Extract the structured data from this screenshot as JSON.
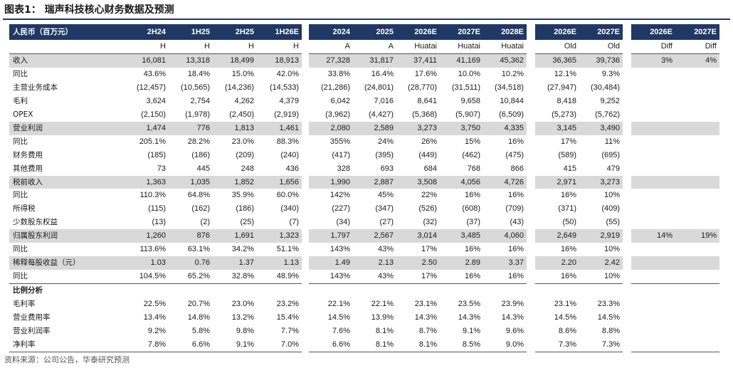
{
  "title": "图表1：  瑞声科技核心财务数据及预测",
  "source": "资料来源：公司公告，华泰研究预测",
  "header": {
    "label": "人民币（百万元）",
    "g1": [
      "2H24",
      "1H25",
      "2H25",
      "1H26E"
    ],
    "g2": [
      "2024",
      "2025",
      "2026E",
      "2027E",
      "2028E"
    ],
    "g3": [
      "2026E",
      "2027E"
    ],
    "g4": [
      "2026E",
      "2027E"
    ]
  },
  "subheader": {
    "g1": [
      "H",
      "H",
      "H",
      "H"
    ],
    "g2": [
      "A",
      "A",
      "Huatai",
      "Huatai",
      "Huatai"
    ],
    "g3": [
      "Old",
      "Old"
    ],
    "g4": [
      "Diff",
      "Diff"
    ]
  },
  "rows": [
    {
      "label": "收入",
      "g1": [
        "16,081",
        "13,318",
        "18,499",
        "18,913"
      ],
      "g2": [
        "27,328",
        "31,817",
        "37,411",
        "41,169",
        "45,362"
      ],
      "g3": [
        "36,365",
        "39,736"
      ],
      "g4": [
        "3%",
        "4%"
      ],
      "shade": true
    },
    {
      "label": "同比",
      "g1": [
        "43.6%",
        "18.4%",
        "15.0%",
        "42.0%"
      ],
      "g2": [
        "33.8%",
        "16.4%",
        "17.6%",
        "10.0%",
        "10.2%"
      ],
      "g3": [
        "12.1%",
        "9.3%"
      ],
      "g4": [
        "",
        ""
      ]
    },
    {
      "label": "主营业务成本",
      "g1": [
        "(12,457)",
        "(10,565)",
        "(14,236)",
        "(14,533)"
      ],
      "g2": [
        "(21,286)",
        "(24,801)",
        "(28,770)",
        "(31,511)",
        "(34,518)"
      ],
      "g3": [
        "(27,947)",
        "(30,484)"
      ],
      "g4": [
        "",
        ""
      ]
    },
    {
      "label": "毛利",
      "g1": [
        "3,624",
        "2,754",
        "4,262",
        "4,379"
      ],
      "g2": [
        "6,042",
        "7,016",
        "8,641",
        "9,658",
        "10,844"
      ],
      "g3": [
        "8,418",
        "9,252"
      ],
      "g4": [
        "",
        ""
      ]
    },
    {
      "label": "OPEX",
      "g1": [
        "(2,150)",
        "(1,978)",
        "(2,450)",
        "(2,919)"
      ],
      "g2": [
        "(3,962)",
        "(4,427)",
        "(5,368)",
        "(5,907)",
        "(6,509)"
      ],
      "g3": [
        "(5,273)",
        "(5,762)"
      ],
      "g4": [
        "",
        ""
      ]
    },
    {
      "label": "营业利润",
      "g1": [
        "1,474",
        "776",
        "1,813",
        "1,461"
      ],
      "g2": [
        "2,080",
        "2,589",
        "3,273",
        "3,750",
        "4,335"
      ],
      "g3": [
        "3,145",
        "3,490"
      ],
      "g4": [
        "",
        ""
      ],
      "shade": true
    },
    {
      "label": "同比",
      "g1": [
        "205.1%",
        "28.2%",
        "23.0%",
        "88.3%"
      ],
      "g2": [
        "355%",
        "24%",
        "26%",
        "15%",
        "16%"
      ],
      "g3": [
        "17%",
        "11%"
      ],
      "g4": [
        "",
        ""
      ]
    },
    {
      "label": "财务费用",
      "g1": [
        "(185)",
        "(186)",
        "(209)",
        "(240)"
      ],
      "g2": [
        "(417)",
        "(395)",
        "(449)",
        "(462)",
        "(475)"
      ],
      "g3": [
        "(589)",
        "(695)"
      ],
      "g4": [
        "",
        ""
      ]
    },
    {
      "label": "其他费用",
      "g1": [
        "73",
        "445",
        "248",
        "436"
      ],
      "g2": [
        "328",
        "693",
        "684",
        "768",
        "866"
      ],
      "g3": [
        "415",
        "479"
      ],
      "g4": [
        "",
        ""
      ]
    },
    {
      "label": "税前收入",
      "g1": [
        "1,363",
        "1,035",
        "1,852",
        "1,656"
      ],
      "g2": [
        "1,990",
        "2,887",
        "3,508",
        "4,056",
        "4,726"
      ],
      "g3": [
        "2,971",
        "3,273"
      ],
      "g4": [
        "",
        ""
      ],
      "shade": true
    },
    {
      "label": "同比",
      "g1": [
        "110.3%",
        "64.8%",
        "35.9%",
        "60.0%"
      ],
      "g2": [
        "142%",
        "45%",
        "22%",
        "16%",
        "16%"
      ],
      "g3": [
        "16%",
        "10%"
      ],
      "g4": [
        "",
        ""
      ]
    },
    {
      "label": "所得税",
      "g1": [
        "(115)",
        "(162)",
        "(186)",
        "(340)"
      ],
      "g2": [
        "(227)",
        "(347)",
        "(526)",
        "(608)",
        "(709)"
      ],
      "g3": [
        "(371)",
        "(409)"
      ],
      "g4": [
        "",
        ""
      ]
    },
    {
      "label": "少数股东权益",
      "g1": [
        "(13)",
        "(2)",
        "(25)",
        "(7)"
      ],
      "g2": [
        "(34)",
        "(27)",
        "(32)",
        "(37)",
        "(43)"
      ],
      "g3": [
        "(50)",
        "(55)"
      ],
      "g4": [
        "",
        ""
      ]
    },
    {
      "label": "归属股东利润",
      "g1": [
        "1,260",
        "876",
        "1,691",
        "1,323"
      ],
      "g2": [
        "1,797",
        "2,567",
        "3,014",
        "3,485",
        "4,060"
      ],
      "g3": [
        "2,649",
        "2,919"
      ],
      "g4": [
        "14%",
        "19%"
      ],
      "shade": true
    },
    {
      "label": "同比",
      "g1": [
        "113.6%",
        "63.1%",
        "34.2%",
        "51.1%"
      ],
      "g2": [
        "143%",
        "43%",
        "17%",
        "16%",
        "16%"
      ],
      "g3": [
        "16%",
        "10%"
      ],
      "g4": [
        "",
        ""
      ]
    },
    {
      "label": "稀释每股收益（元）",
      "g1": [
        "1.03",
        "0.76",
        "1.37",
        "1.13"
      ],
      "g2": [
        "1.49",
        "2.13",
        "2.50",
        "2.89",
        "3.37"
      ],
      "g3": [
        "2.20",
        "2.42"
      ],
      "g4": [
        "",
        ""
      ],
      "shade": true
    },
    {
      "label": "同比",
      "g1": [
        "104.5%",
        "65.2%",
        "32.8%",
        "48.9%"
      ],
      "g2": [
        "143%",
        "43%",
        "17%",
        "16%",
        "16%"
      ],
      "g3": [
        "16%",
        "10%"
      ],
      "g4": [
        "",
        ""
      ]
    }
  ],
  "ratio_section": {
    "label": "比例分析",
    "rows": [
      {
        "label": "毛利率",
        "g1": [
          "22.5%",
          "20.7%",
          "23.0%",
          "23.2%"
        ],
        "g2": [
          "22.1%",
          "22.1%",
          "23.1%",
          "23.5%",
          "23.9%"
        ],
        "g3": [
          "23.1%",
          "23.3%"
        ],
        "g4": [
          "",
          ""
        ]
      },
      {
        "label": "营业费用率",
        "g1": [
          "13.4%",
          "14.8%",
          "13.2%",
          "15.4%"
        ],
        "g2": [
          "14.5%",
          "13.9%",
          "14.3%",
          "14.3%",
          "14.3%"
        ],
        "g3": [
          "14.5%",
          "14.5%"
        ],
        "g4": [
          "",
          ""
        ]
      },
      {
        "label": "营业利润率",
        "g1": [
          "9.2%",
          "5.8%",
          "9.8%",
          "7.7%"
        ],
        "g2": [
          "7.6%",
          "8.1%",
          "8.7%",
          "9.1%",
          "9.6%"
        ],
        "g3": [
          "8.6%",
          "8.8%"
        ],
        "g4": [
          "",
          ""
        ]
      },
      {
        "label": "净利率",
        "g1": [
          "7.8%",
          "6.6%",
          "9.1%",
          "7.0%"
        ],
        "g2": [
          "6.6%",
          "8.1%",
          "8.1%",
          "8.5%",
          "9.0%"
        ],
        "g3": [
          "7.3%",
          "7.3%"
        ],
        "g4": [
          "",
          ""
        ]
      }
    ]
  },
  "colors": {
    "header_bg": "#1f3864",
    "shade_bg": "#d9d9d9"
  }
}
